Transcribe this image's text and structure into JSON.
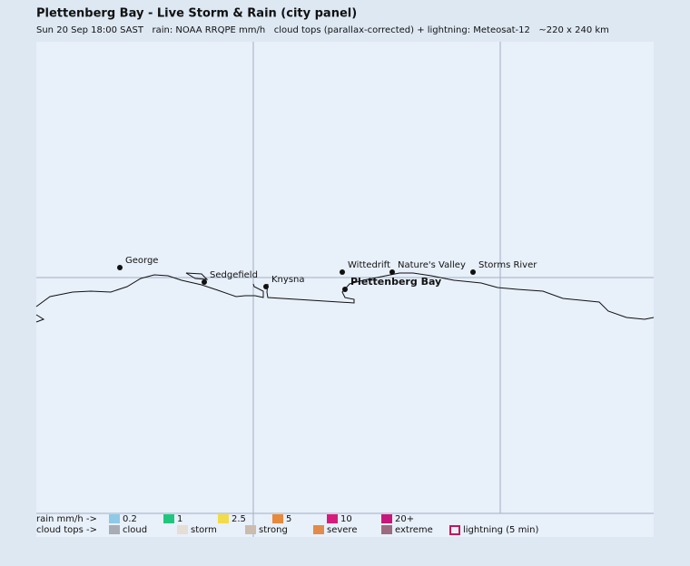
{
  "header": {
    "title": "Plettenberg Bay - Live Storm & Rain (city panel)",
    "subtitle": "Sun 20 Sep 18:00 SAST   rain: NOAA RRQPE mm/h   cloud tops (parallax-corrected) + lightning: Meteosat-12   ~220 x 240 km"
  },
  "places": [
    {
      "label": "George"
    },
    {
      "label": "Sedgefield"
    },
    {
      "label": "Knysna"
    },
    {
      "label": "Wittedrift"
    },
    {
      "label": "Nature's Valley"
    },
    {
      "label": "Storms River"
    },
    {
      "label": "Plettenberg Bay"
    }
  ],
  "legend": {
    "rain": {
      "label": "rain mm/h ->",
      "items": [
        {
          "label": "0.2",
          "color": "#8ecae6"
        },
        {
          "label": "1",
          "color": "#1fc77e"
        },
        {
          "label": "2.5",
          "color": "#f2dc4a"
        },
        {
          "label": "5",
          "color": "#e8893c"
        },
        {
          "label": "10",
          "color": "#d81b7a"
        },
        {
          "label": "20+",
          "color": "#c8177a"
        }
      ]
    },
    "cloud": {
      "label": "cloud tops ->",
      "items": [
        {
          "label": "cloud",
          "color": "#a8adb5"
        },
        {
          "label": "storm",
          "color": "#e6ddd6"
        },
        {
          "label": "strong",
          "color": "#cbbcae"
        },
        {
          "label": "severe",
          "color": "#e38b4a"
        },
        {
          "label": "extreme",
          "color": "#9c6b7f"
        },
        {
          "label": "lightning (5 min)",
          "color": "#c2185b"
        }
      ]
    }
  }
}
